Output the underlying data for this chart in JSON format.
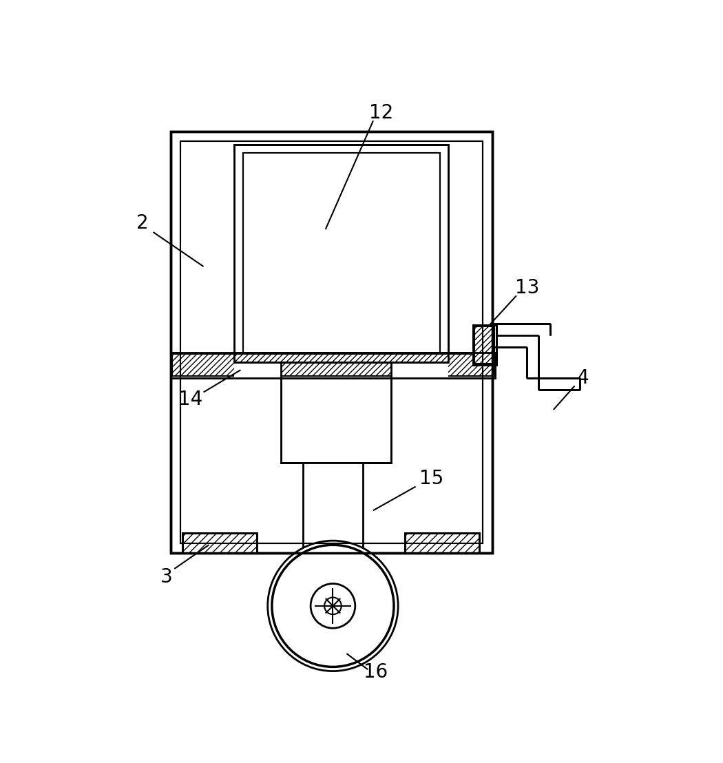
{
  "background_color": "#ffffff",
  "line_color": "#000000",
  "fig_width": 10.5,
  "fig_height": 11.08,
  "lw_thick": 2.5,
  "lw_med": 2.0,
  "lw_thin": 1.5,
  "label_fs": 20
}
